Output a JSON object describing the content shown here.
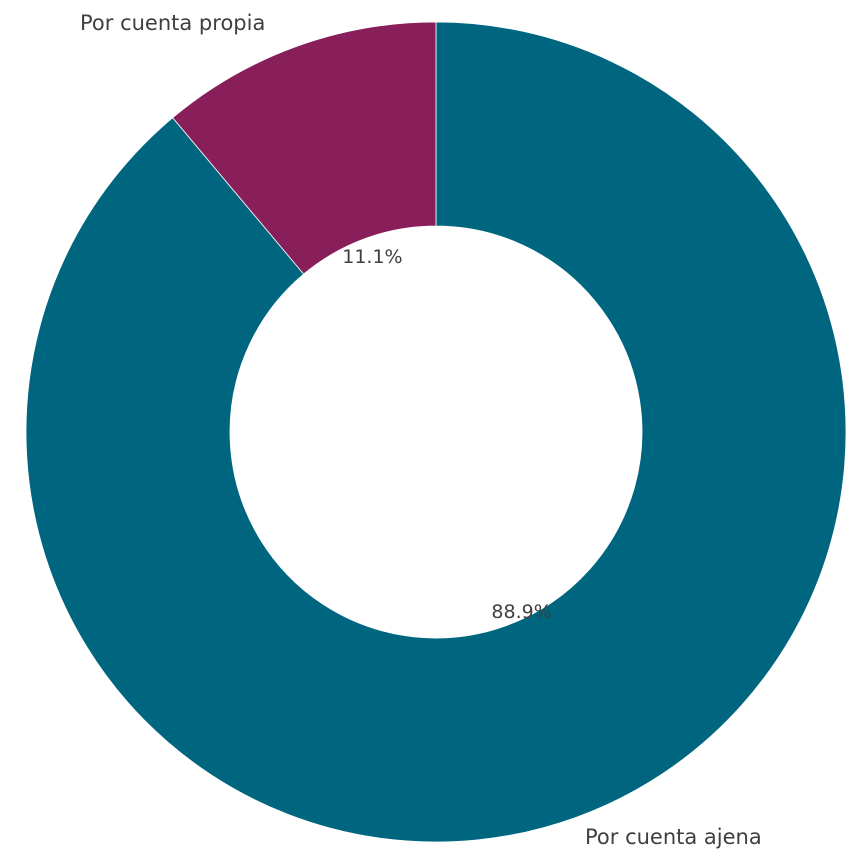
{
  "chart_data": {
    "type": "pie",
    "donut": true,
    "title": "",
    "slices": [
      {
        "label": "Por cuenta ajena",
        "value": 88.9,
        "value_label": "88.9%",
        "color": "#00657f"
      },
      {
        "label": "Por cuenta propia",
        "value": 11.1,
        "value_label": "11.1%",
        "color": "#881f5b"
      }
    ],
    "legend": "none"
  }
}
